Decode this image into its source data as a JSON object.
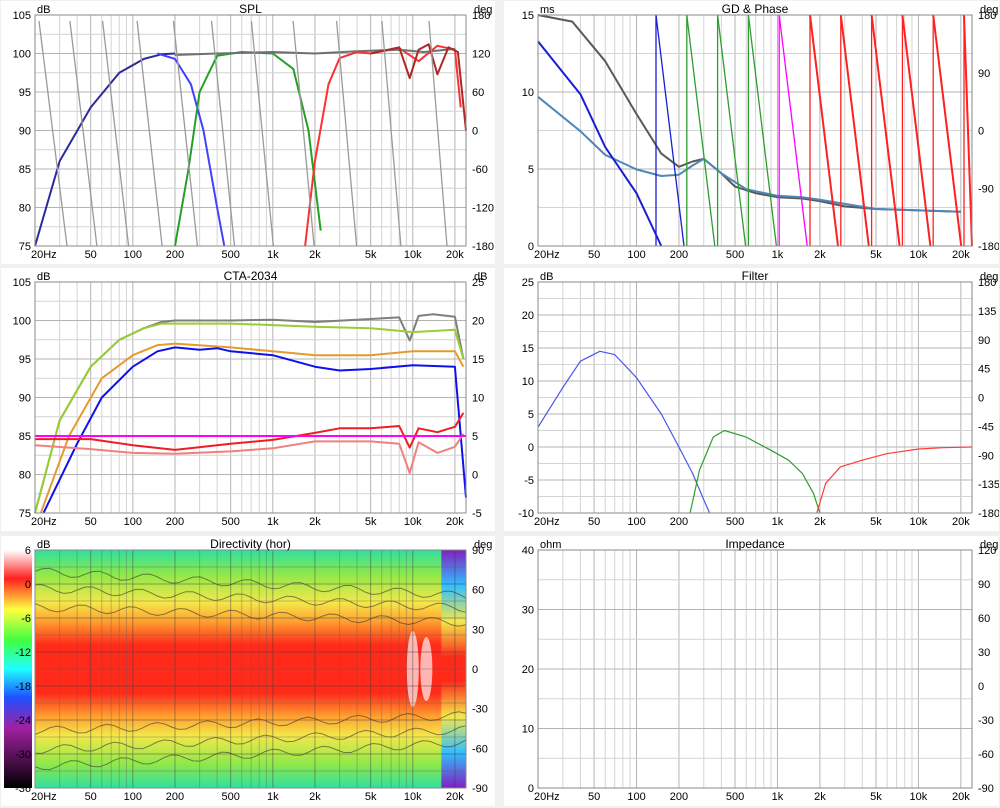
{
  "panels": [
    {
      "key": "spl",
      "title": "SPL",
      "left_unit": "dB",
      "right_unit": "deg",
      "left_ticks": [
        "75",
        "80",
        "85",
        "90",
        "95",
        "100",
        "105"
      ],
      "ymin": 75,
      "ymax": 105,
      "right_ticks": [
        "-180",
        "-120",
        "-60",
        "0",
        "60",
        "120",
        "180"
      ]
    },
    {
      "key": "gd",
      "title": "GD & Phase",
      "left_unit": "ms",
      "right_unit": "deg",
      "left_ticks": [
        "0",
        "5",
        "10",
        "15"
      ],
      "ymin": -2.5,
      "ymax": 15,
      "right_ticks": [
        "-180",
        "-90",
        "0",
        "90",
        "180"
      ]
    },
    {
      "key": "cta",
      "title": "CTA-2034",
      "left_unit": "dB",
      "right_unit": "dB",
      "left_ticks": [
        "75",
        "80",
        "85",
        "90",
        "95",
        "100",
        "105"
      ],
      "ymin": 75,
      "ymax": 105,
      "right_ticks": [
        "-5",
        "0",
        "5",
        "10",
        "15",
        "20",
        "25"
      ]
    },
    {
      "key": "filter",
      "title": "Filter",
      "left_unit": "dB",
      "right_unit": "deg",
      "left_ticks": [
        "-10",
        "-5",
        "0",
        "5",
        "10",
        "15",
        "20",
        "25"
      ],
      "ymin": -10,
      "ymax": 25,
      "right_ticks": [
        "-180",
        "-135",
        "-90",
        "-45",
        "0",
        "45",
        "90",
        "135",
        "180"
      ]
    },
    {
      "key": "dir",
      "title": "Directivity (hor)",
      "left_unit": "dB",
      "right_unit": "deg",
      "left_ticks": [
        "6",
        "0",
        "-6",
        "-12",
        "-18",
        "-24",
        "-30",
        "-36"
      ],
      "ymin": -36,
      "ymax": 6,
      "right_ticks": [
        "-90",
        "-60",
        "-30",
        "0",
        "30",
        "60",
        "90"
      ]
    },
    {
      "key": "imp",
      "title": "Impedance",
      "left_unit": "ohm",
      "right_unit": "deg",
      "left_ticks": [
        "0",
        "10",
        "20",
        "30",
        "40"
      ],
      "ymin": 0,
      "ymax": 40,
      "right_ticks": [
        "-90",
        "-60",
        "-30",
        "0",
        "30",
        "60",
        "90",
        "120"
      ]
    }
  ],
  "x_ticks": [
    "20Hz",
    "50",
    "100",
    "200",
    "500",
    "1k",
    "2k",
    "5k",
    "10k",
    "20k"
  ],
  "chart_data": [
    {
      "type": "line",
      "title": "SPL",
      "x_scale": "log",
      "xlim": [
        20,
        24000
      ],
      "ylim": [
        75,
        105
      ],
      "y2lim": [
        -180,
        180
      ],
      "series": [
        {
          "color": "#2b2b9a",
          "x": [
            20,
            30,
            50,
            80,
            120,
            160,
            200
          ],
          "y": [
            75,
            86,
            93,
            97.5,
            99.3,
            99.9,
            100
          ]
        },
        {
          "color": "#4040ff",
          "x": [
            150,
            200,
            260,
            320,
            400,
            450
          ],
          "y": [
            100,
            99.3,
            96,
            90,
            80,
            75
          ]
        },
        {
          "color": "#25a025",
          "x": [
            200,
            250,
            300,
            400,
            600,
            1000,
            1400,
            1800,
            2200
          ],
          "y": [
            75,
            85,
            95,
            99.7,
            100.2,
            100,
            98,
            90,
            77
          ]
        },
        {
          "color": "#ff3030",
          "x": [
            1700,
            2000,
            2500,
            3000,
            4000,
            5000,
            8000,
            11000,
            15000,
            20000,
            22000
          ],
          "y": [
            75,
            86,
            96,
            99.4,
            100.2,
            100,
            100.7,
            99,
            101,
            100.5,
            93
          ]
        },
        {
          "color": "#707070",
          "x": [
            200,
            400,
            1000,
            2000,
            4000,
            8000,
            12000,
            20000
          ],
          "y": [
            99.8,
            100,
            100.2,
            100,
            100.3,
            100.5,
            100.2,
            100.6
          ]
        },
        {
          "color": "#ad2828",
          "x": [
            5000,
            8000,
            9500,
            11000,
            13000,
            15000,
            18000,
            21000,
            24000
          ],
          "y": [
            100,
            100.8,
            96.8,
            100.5,
            101.2,
            97.3,
            100.8,
            100.2,
            90
          ]
        }
      ]
    },
    {
      "type": "line",
      "title": "GD & Phase",
      "x_scale": "log",
      "xlim": [
        20,
        24000
      ],
      "ylim": [
        -2.5,
        15
      ],
      "series": [
        {
          "color": "#595959",
          "x": [
            20,
            35,
            60,
            100,
            150,
            200,
            250,
            300,
            400,
            500,
            700,
            1000,
            1500,
            2000,
            3000,
            5000,
            10000,
            20000
          ],
          "y": [
            15,
            14.5,
            11.5,
            7.5,
            4.5,
            3.5,
            3.9,
            4.1,
            3,
            2,
            1.5,
            1.2,
            1.1,
            0.9,
            0.5,
            0.3,
            0.2,
            0.1
          ]
        },
        {
          "color": "#4d86b8",
          "x": [
            20,
            40,
            60,
            100,
            150,
            200,
            250,
            300,
            400,
            600,
            1000,
            1500,
            2000,
            5000,
            20000
          ],
          "y": [
            8.8,
            6.2,
            4.4,
            3.3,
            2.8,
            2.9,
            3.6,
            4.1,
            3,
            1.8,
            1.3,
            1.2,
            1,
            0.3,
            0.1
          ]
        },
        {
          "color": "#1c1cd6",
          "x": [
            20,
            40,
            60,
            100,
            150
          ],
          "y": [
            13,
            9,
            5,
            1.5,
            -2.5
          ]
        }
      ]
    },
    {
      "type": "line",
      "title": "CTA-2034",
      "x_scale": "log",
      "xlim": [
        20,
        24000
      ],
      "ylim": [
        75,
        105
      ],
      "y2lim": [
        -5,
        25
      ],
      "series": [
        {
          "color": "#7f7f7f",
          "x": [
            20,
            30,
            50,
            80,
            120,
            160,
            200,
            500,
            1000,
            2000,
            5000,
            8000,
            9500,
            11000,
            14000,
            20000,
            23000
          ],
          "y": [
            75,
            87,
            94,
            97.5,
            99,
            99.8,
            100,
            100,
            100.1,
            99.8,
            100.2,
            100.4,
            97.4,
            100.6,
            100.8,
            100.5,
            95
          ]
        },
        {
          "color": "#9acd32",
          "x": [
            20,
            30,
            50,
            80,
            120,
            160,
            200,
            500,
            1000,
            2000,
            5000,
            10000,
            20000,
            23000
          ],
          "y": [
            75,
            87,
            94,
            97.5,
            99,
            99.6,
            99.6,
            99.6,
            99.4,
            99.2,
            99,
            98.5,
            98.8,
            95
          ]
        },
        {
          "color": "#e69a2e",
          "x": [
            22,
            35,
            60,
            100,
            150,
            200,
            500,
            1000,
            2000,
            5000,
            10000,
            20000,
            23000
          ],
          "y": [
            75,
            85,
            92.5,
            95.5,
            96.8,
            97,
            96.5,
            96,
            95.5,
            95.5,
            96,
            96,
            94
          ]
        },
        {
          "color": "#1010ee",
          "x": [
            23,
            40,
            60,
            100,
            150,
            200,
            300,
            400,
            500,
            1000,
            2000,
            3000,
            5000,
            10000,
            20000,
            24000
          ],
          "y": [
            75,
            84,
            90,
            94,
            96,
            96.5,
            96.2,
            96.4,
            96,
            95.5,
            94,
            93.5,
            93.7,
            94.2,
            94,
            77
          ]
        },
        {
          "color": "#ee1d23",
          "x": [
            20,
            50,
            100,
            200,
            500,
            1000,
            2000,
            3000,
            5000,
            8000,
            9500,
            11000,
            15000,
            20000,
            23000
          ],
          "y": [
            84.6,
            84.6,
            83.8,
            83.2,
            84,
            84.5,
            85.4,
            86,
            86,
            86.3,
            83.5,
            86,
            85.5,
            86.2,
            88
          ]
        },
        {
          "color": "#f08080",
          "x": [
            20,
            50,
            100,
            200,
            500,
            1000,
            2000,
            5000,
            8000,
            9500,
            11000,
            15000,
            20000,
            23000
          ],
          "y": [
            83.8,
            83.3,
            82.8,
            82.7,
            83,
            83.4,
            84.3,
            84.3,
            84,
            80.2,
            84.2,
            82.8,
            83.6,
            85.3
          ]
        },
        {
          "color": "#ff00ff",
          "x": [
            20,
            24000
          ],
          "y": [
            85,
            85
          ]
        }
      ]
    },
    {
      "type": "line",
      "title": "Filter",
      "x_scale": "log",
      "xlim": [
        20,
        24000
      ],
      "ylim": [
        -10,
        25
      ],
      "series": [
        {
          "color": "#4a56e6",
          "x": [
            20,
            30,
            40,
            55,
            70,
            100,
            150,
            200,
            250,
            300,
            330
          ],
          "y": [
            3,
            9,
            13,
            14.5,
            14,
            10.5,
            5,
            0,
            -4,
            -8,
            -10
          ]
        },
        {
          "color": "#2e9e2e",
          "x": [
            240,
            280,
            350,
            420,
            600,
            900,
            1200,
            1500,
            1800,
            2000
          ],
          "y": [
            -10,
            -3.5,
            1.5,
            2.5,
            1.5,
            -0.5,
            -2,
            -4,
            -7,
            -10
          ]
        },
        {
          "color": "#ff3b3b",
          "x": [
            1900,
            2200,
            2800,
            4000,
            6000,
            10000,
            15000,
            24000
          ],
          "y": [
            -10,
            -5.5,
            -3,
            -2,
            -1,
            -0.3,
            -0.1,
            0
          ]
        }
      ]
    },
    {
      "type": "heatmap",
      "title": "Directivity (hor)",
      "x_scale": "log",
      "xlim": [
        20,
        24000
      ],
      "ylim": [
        -90,
        90
      ],
      "color_scale": [
        6,
        -36
      ]
    },
    {
      "type": "line",
      "title": "Impedance",
      "x_scale": "log",
      "xlim": [
        20,
        24000
      ],
      "ylim": [
        0,
        40
      ],
      "series": []
    }
  ]
}
